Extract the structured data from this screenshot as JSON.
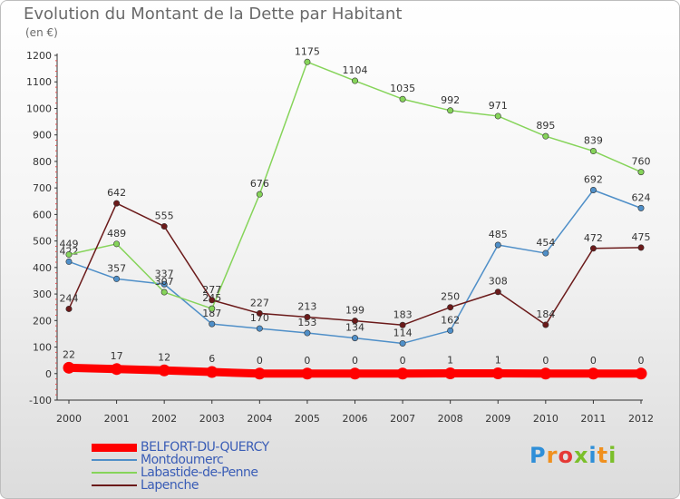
{
  "title": "Evolution du Montant de la Dette par Habitant",
  "subtitle": "(en €)",
  "brand": "Proxiti",
  "brand_colors": [
    "#2f8fd8",
    "#f0901e",
    "#e53935",
    "#7bbf2a",
    "#2f8fd8",
    "#f0901e",
    "#7bbf2a"
  ],
  "chart_data": {
    "type": "line",
    "title": "Evolution du Montant de la Dette par Habitant",
    "subtitle": "(en €)",
    "x": [
      2000,
      2001,
      2002,
      2003,
      2004,
      2005,
      2006,
      2007,
      2008,
      2009,
      2010,
      2011,
      2012
    ],
    "ylim": [
      -100,
      1200
    ],
    "yticks": [
      -100,
      0,
      100,
      200,
      300,
      400,
      500,
      600,
      700,
      800,
      900,
      1000,
      1100,
      1200
    ],
    "grid": false,
    "legend": "bottom-left",
    "series": [
      {
        "name": "BELFORT-DU-QUERCY",
        "color": "#ff0000",
        "values": [
          22,
          17,
          12,
          6,
          0,
          0,
          0,
          0,
          1,
          1,
          0,
          0,
          0
        ]
      },
      {
        "name": "Montdoumerc",
        "color": "#4f8fc8",
        "values": [
          422,
          357,
          337,
          187,
          170,
          153,
          134,
          114,
          162,
          485,
          454,
          692,
          624
        ]
      },
      {
        "name": "Labastide-de-Penne",
        "color": "#86d45a",
        "values": [
          449,
          489,
          307,
          245,
          676,
          1175,
          1104,
          1035,
          992,
          971,
          895,
          839,
          760
        ]
      },
      {
        "name": "Lapenche",
        "color": "#6b1a1a",
        "values": [
          244,
          642,
          555,
          277,
          227,
          213,
          199,
          183,
          250,
          308,
          184,
          472,
          475
        ]
      }
    ]
  }
}
